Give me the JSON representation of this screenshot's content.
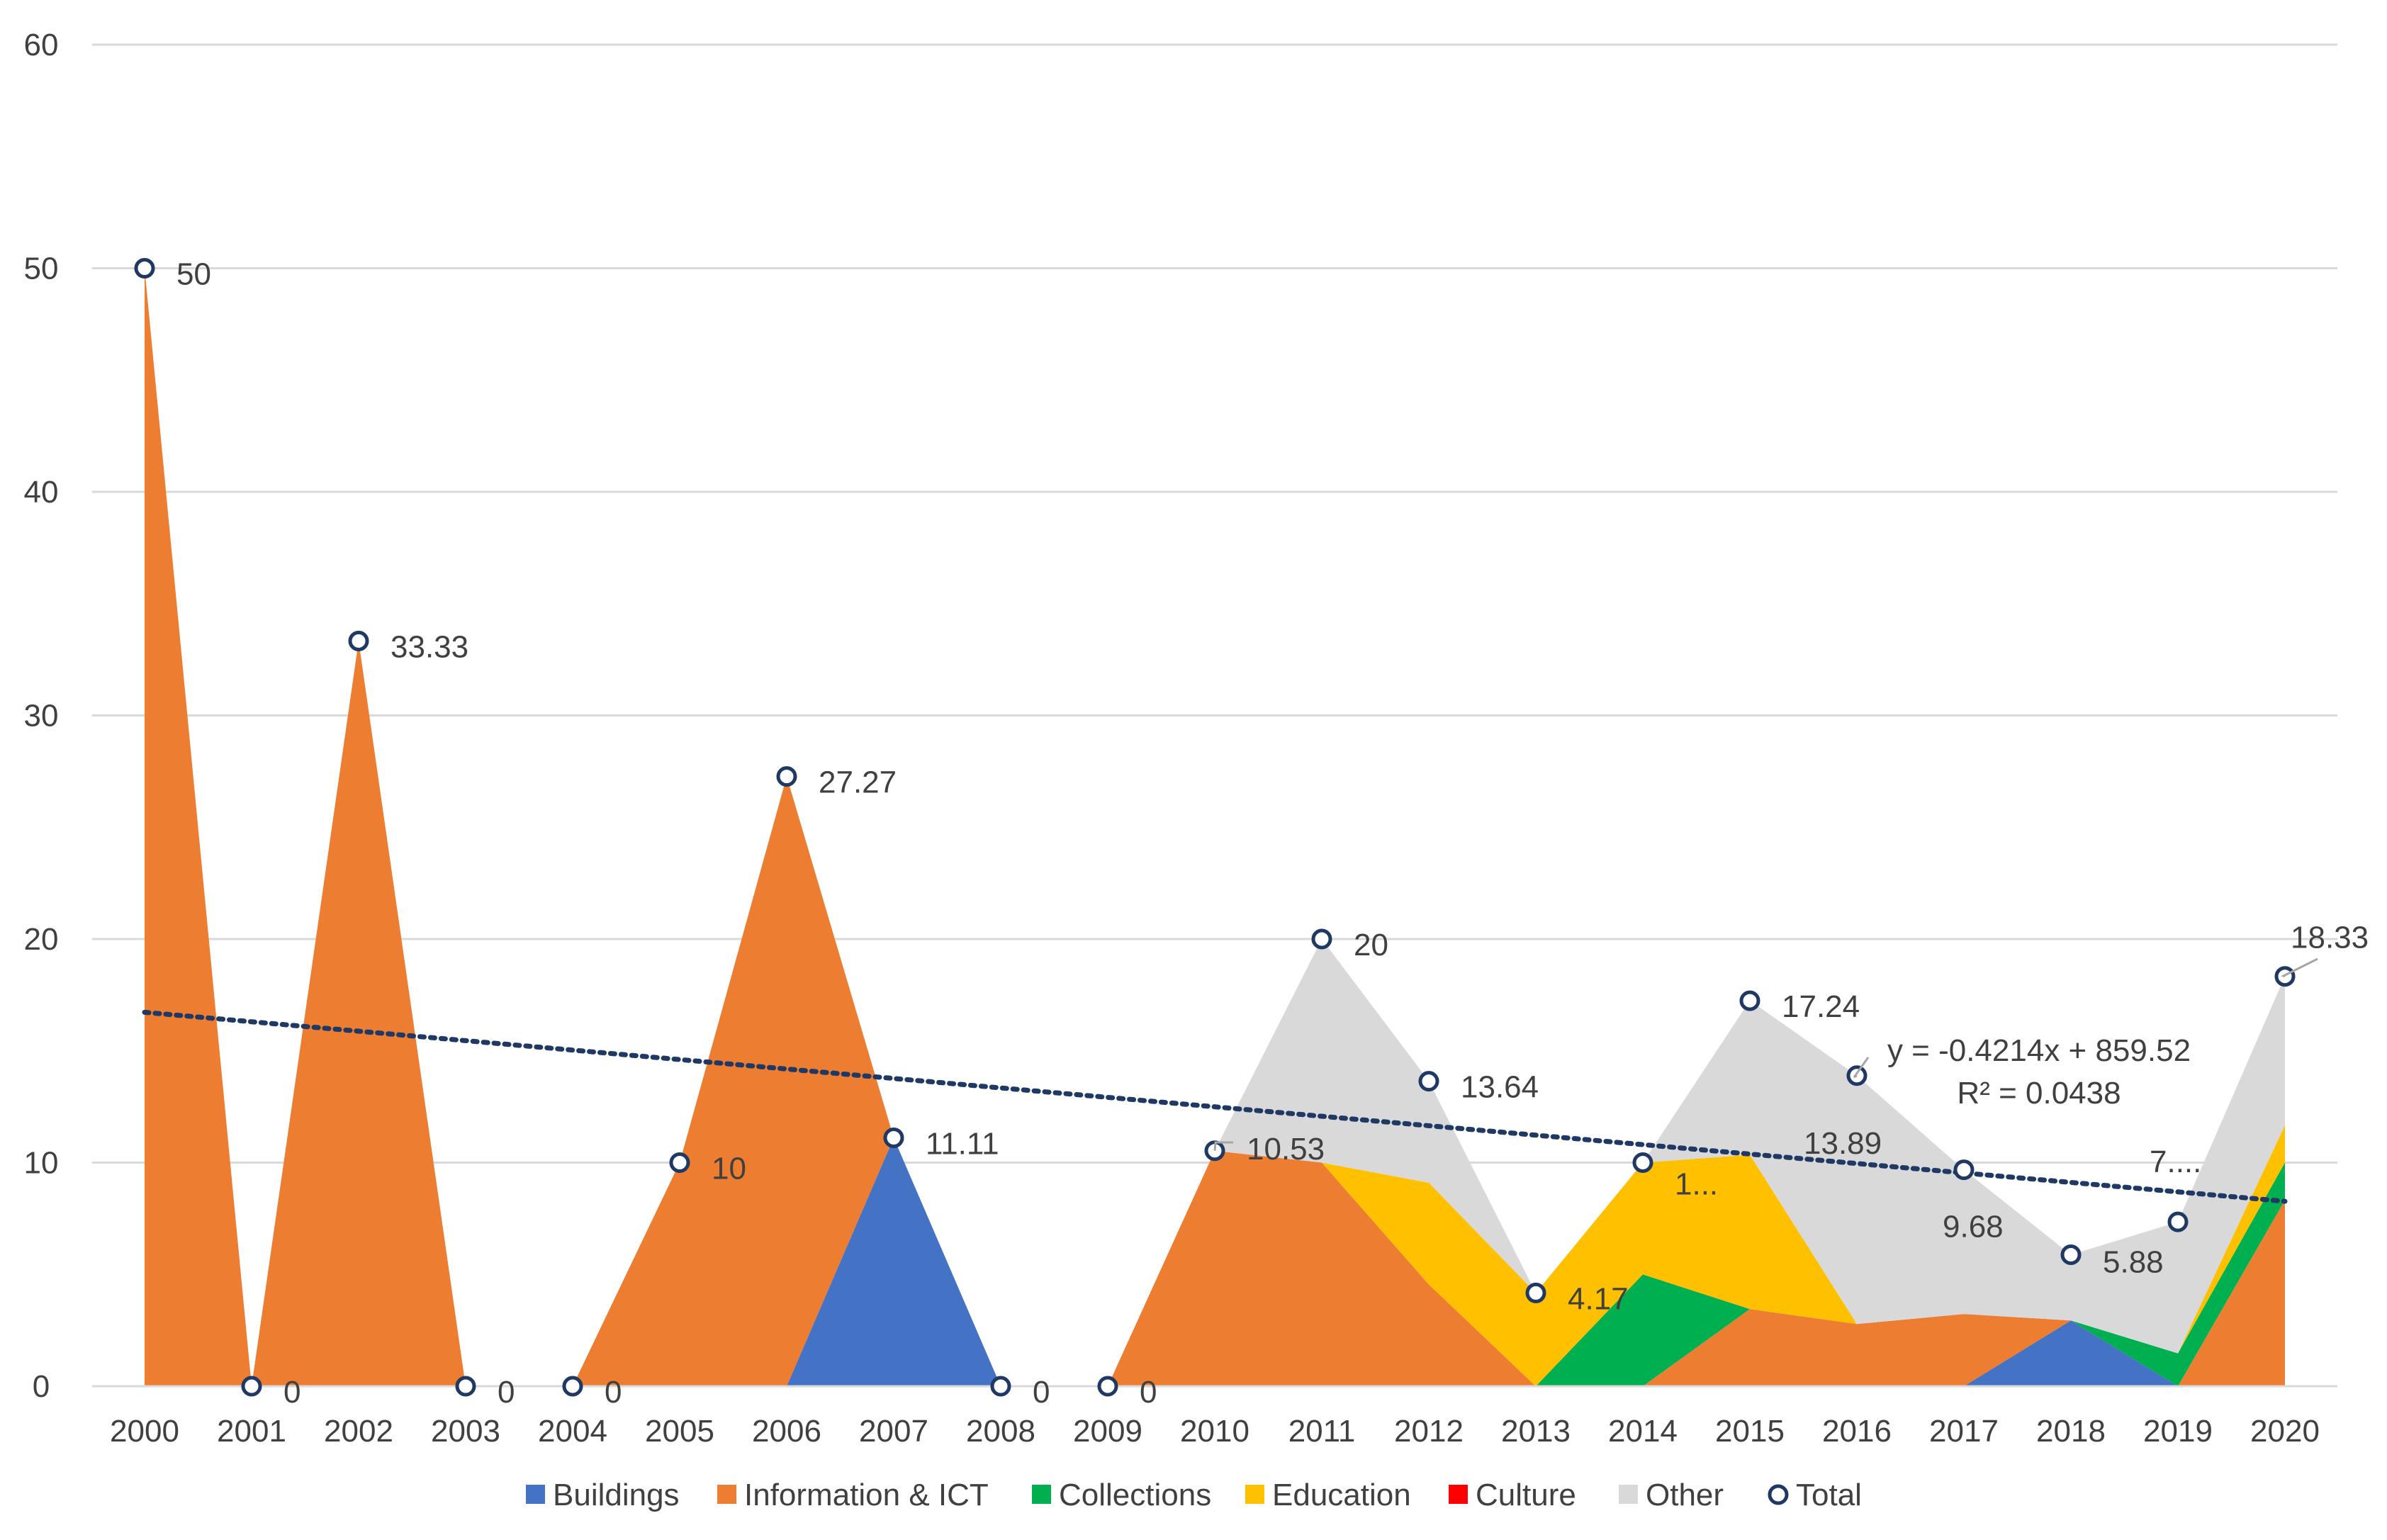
{
  "chart_data": {
    "type": "area",
    "stacked": true,
    "categories": [
      "2000",
      "2001",
      "2002",
      "2003",
      "2004",
      "2005",
      "2006",
      "2007",
      "2008",
      "2009",
      "2010",
      "2011",
      "2012",
      "2013",
      "2014",
      "2015",
      "2016",
      "2017",
      "2018",
      "2019",
      "2020"
    ],
    "ylim": [
      0,
      60
    ],
    "yticks": [
      0,
      10,
      20,
      30,
      40,
      50,
      60
    ],
    "grid": true,
    "legend_position": "bottom",
    "series": [
      {
        "name": "Buildings",
        "color": "#4472C4",
        "values": [
          0,
          0,
          0,
          0,
          0,
          0,
          0,
          11.11,
          0,
          0,
          0,
          0,
          0,
          0,
          0,
          0,
          0,
          0,
          2.94,
          0,
          0
        ]
      },
      {
        "name": "Information & ICT",
        "color": "#ED7D31",
        "values": [
          50,
          0,
          33.33,
          0,
          0,
          10,
          27.27,
          0,
          0,
          0,
          10.53,
          10,
          4.55,
          0,
          0,
          3.45,
          2.78,
          3.23,
          0,
          0,
          8.33
        ]
      },
      {
        "name": "Collections",
        "color": "#00B050",
        "values": [
          0,
          0,
          0,
          0,
          0,
          0,
          0,
          0,
          0,
          0,
          0,
          0,
          0,
          0,
          5,
          0,
          0,
          0,
          0,
          1.47,
          1.67
        ]
      },
      {
        "name": "Education",
        "color": "#FFC000",
        "values": [
          0,
          0,
          0,
          0,
          0,
          0,
          0,
          0,
          0,
          0,
          0,
          0,
          4.55,
          4.17,
          5,
          6.9,
          0,
          0,
          0,
          0,
          1.67
        ]
      },
      {
        "name": "Culture",
        "color": "#FF0000",
        "values": [
          0,
          0,
          0,
          0,
          0,
          0,
          0,
          0,
          0,
          0,
          0,
          0,
          0,
          0,
          0,
          0,
          0,
          0,
          0,
          0,
          0
        ]
      },
      {
        "name": "Other",
        "color": "#D9D9D9",
        "values": [
          0,
          0,
          0,
          0,
          0,
          0,
          0,
          0,
          0,
          0,
          0,
          10,
          4.55,
          0,
          0,
          6.9,
          11.11,
          6.45,
          2.94,
          5.88,
          6.67
        ]
      }
    ],
    "total": {
      "name": "Total",
      "marker_color": "#1F3864",
      "values": [
        50,
        0,
        33.33,
        0,
        0,
        10,
        27.27,
        11.11,
        0,
        0,
        10.53,
        20,
        13.64,
        4.17,
        10,
        17.24,
        13.89,
        9.68,
        5.88,
        7.35,
        18.33
      ],
      "labels": [
        "50",
        "0",
        "33.33",
        "0",
        "0",
        "10",
        "27.27",
        "11.11",
        "0",
        "0",
        "10.53",
        "20",
        "13.64",
        "4.17",
        "1...",
        "17.24",
        "13.89",
        "9.68",
        "5.88",
        "7....",
        "18.33"
      ]
    },
    "trendline": {
      "type": "linear",
      "color": "#1F3864",
      "style": "dotted",
      "equation": "y = -0.4214x + 859.52",
      "r2": "R² = 0.0438"
    }
  }
}
